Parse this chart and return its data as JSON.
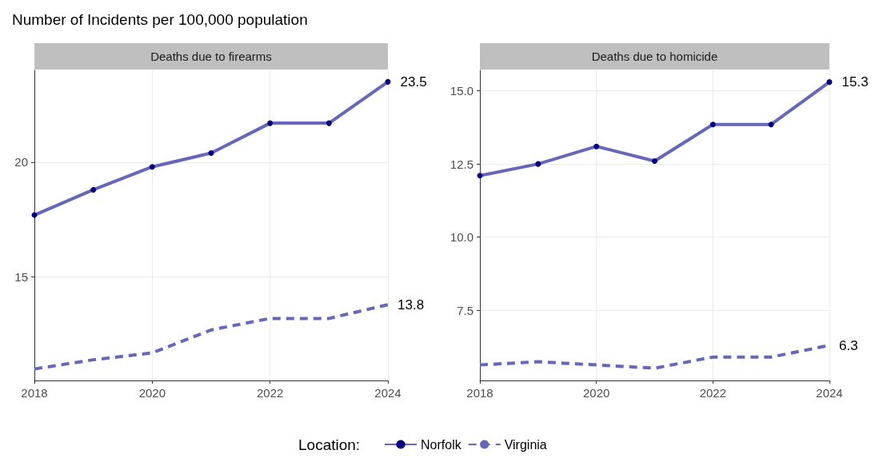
{
  "chart_data": [
    {
      "type": "line",
      "title": "Deaths due to firearms",
      "ylabel": "Number of Incidents per 100,000 population",
      "legend_title": "Location:",
      "legend": "bottom",
      "grid": true,
      "x": [
        2018,
        2019,
        2020,
        2021,
        2022,
        2023,
        2024
      ],
      "xlim": [
        2018,
        2024
      ],
      "xticks": [
        2018,
        2020,
        2022,
        2024
      ],
      "ylim": [
        10.5,
        24
      ],
      "yticks": [
        15,
        20
      ],
      "series": [
        {
          "name": "Norfolk",
          "color": "#6666bb",
          "marker": "circle",
          "line_style": "solid",
          "values": [
            17.7,
            18.8,
            19.8,
            20.4,
            21.7,
            21.7,
            23.5
          ],
          "value_labels": [
            null,
            null,
            null,
            null,
            null,
            null,
            "23.5"
          ]
        },
        {
          "name": "Virginia",
          "color": "#6666bb",
          "marker": "none",
          "line_style": "dashed",
          "values": [
            11.0,
            11.4,
            11.7,
            12.7,
            13.2,
            13.2,
            13.8
          ],
          "value_labels": [
            null,
            null,
            null,
            null,
            null,
            null,
            "13.8"
          ]
        }
      ]
    },
    {
      "type": "line",
      "title": "Deaths due to homicide",
      "grid": true,
      "x": [
        2018,
        2019,
        2020,
        2021,
        2022,
        2023,
        2024
      ],
      "xlim": [
        2018,
        2024
      ],
      "xticks": [
        2018,
        2020,
        2022,
        2024
      ],
      "ylim": [
        5.1,
        15.7
      ],
      "yticks": [
        {
          "value": 7.5,
          "label": "7.5"
        },
        {
          "value": 10,
          "label": "10.0"
        },
        {
          "value": 12.5,
          "label": "12.5"
        },
        {
          "value": 15,
          "label": "15.0"
        }
      ],
      "series": [
        {
          "name": "Norfolk",
          "color": "#6666bb",
          "marker": "circle",
          "line_style": "solid",
          "values": [
            12.1,
            12.5,
            13.1,
            12.6,
            13.85,
            13.85,
            15.3
          ],
          "value_labels": [
            null,
            null,
            null,
            null,
            null,
            null,
            "15.3"
          ]
        },
        {
          "name": "Virginia",
          "color": "#6666bb",
          "marker": "none",
          "line_style": "dashed",
          "values": [
            5.63,
            5.74,
            5.63,
            5.52,
            5.9,
            5.9,
            6.3
          ],
          "value_labels": [
            null,
            null,
            null,
            null,
            null,
            null,
            "6.3"
          ]
        }
      ]
    }
  ]
}
